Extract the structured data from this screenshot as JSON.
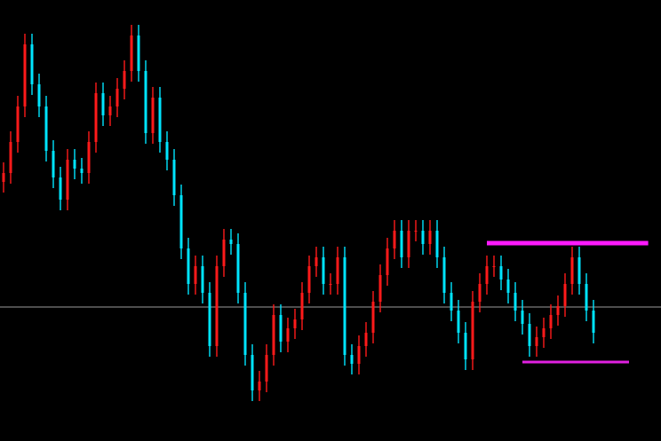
{
  "chart_data": {
    "type": "candlestick",
    "opens": [
      292,
      302,
      337,
      377,
      447,
      402,
      377,
      327,
      297,
      272,
      317,
      307,
      302,
      337,
      392,
      367,
      377,
      397,
      417,
      457,
      417,
      347,
      387,
      337,
      317,
      277,
      217,
      177,
      197,
      167,
      107,
      197,
      227,
      222,
      167,
      97,
      57,
      67,
      97,
      142,
      112,
      127,
      137,
      167,
      197,
      207,
      177,
      177,
      207,
      97,
      87,
      107,
      122,
      157,
      187,
      217,
      237,
      207,
      237,
      237,
      222,
      237,
      207,
      167,
      147,
      122,
      92,
      157,
      177,
      197,
      197,
      182,
      167,
      147,
      132,
      107,
      117,
      127,
      142,
      152,
      177,
      207,
      177,
      147
    ],
    "closes": [
      302,
      337,
      377,
      447,
      402,
      377,
      327,
      297,
      272,
      317,
      307,
      302,
      337,
      392,
      367,
      377,
      397,
      417,
      457,
      417,
      347,
      387,
      337,
      317,
      277,
      217,
      177,
      197,
      167,
      107,
      197,
      227,
      222,
      167,
      97,
      57,
      67,
      97,
      142,
      112,
      127,
      137,
      167,
      197,
      207,
      177,
      177,
      207,
      97,
      87,
      107,
      122,
      157,
      187,
      217,
      237,
      207,
      237,
      237,
      222,
      237,
      207,
      167,
      147,
      122,
      92,
      157,
      177,
      197,
      197,
      182,
      167,
      147,
      132,
      107,
      117,
      127,
      142,
      152,
      177,
      207,
      177,
      147,
      122
    ],
    "highs": [
      314,
      349,
      389,
      459,
      459,
      414,
      389,
      339,
      309,
      329,
      329,
      319,
      349,
      404,
      404,
      389,
      409,
      429,
      469,
      469,
      429,
      399,
      399,
      349,
      329,
      289,
      229,
      209,
      209,
      179,
      209,
      239,
      239,
      234,
      179,
      109,
      79,
      109,
      154,
      154,
      139,
      149,
      179,
      209,
      219,
      219,
      189,
      219,
      219,
      109,
      119,
      134,
      169,
      199,
      229,
      249,
      249,
      249,
      249,
      249,
      249,
      249,
      219,
      179,
      159,
      134,
      169,
      189,
      209,
      209,
      209,
      194,
      179,
      159,
      144,
      129,
      139,
      154,
      164,
      189,
      219,
      219,
      189,
      159
    ],
    "lows": [
      280,
      290,
      325,
      365,
      390,
      365,
      315,
      285,
      260,
      260,
      295,
      290,
      290,
      325,
      355,
      355,
      365,
      385,
      405,
      405,
      335,
      335,
      325,
      305,
      265,
      205,
      165,
      165,
      155,
      95,
      95,
      185,
      210,
      155,
      85,
      45,
      45,
      55,
      85,
      100,
      100,
      115,
      125,
      155,
      185,
      165,
      165,
      165,
      85,
      75,
      75,
      95,
      110,
      145,
      175,
      205,
      195,
      195,
      225,
      210,
      210,
      195,
      155,
      135,
      110,
      80,
      80,
      145,
      165,
      185,
      170,
      155,
      135,
      120,
      95,
      95,
      105,
      115,
      130,
      140,
      165,
      165,
      135,
      110
    ],
    "up_color": "#ff1a1a",
    "down_color": "#00e5ff",
    "ylim": [
      0,
      497
    ],
    "price_line": {
      "value": 151,
      "color": "#9a9a9a"
    },
    "levels": [
      {
        "value": 223,
        "from": 68,
        "to": 90.7,
        "color": "#ff1aff",
        "width": 5
      },
      {
        "value": 89,
        "from": 73,
        "to": 88,
        "color": "#e020e0",
        "width": 3
      }
    ]
  }
}
